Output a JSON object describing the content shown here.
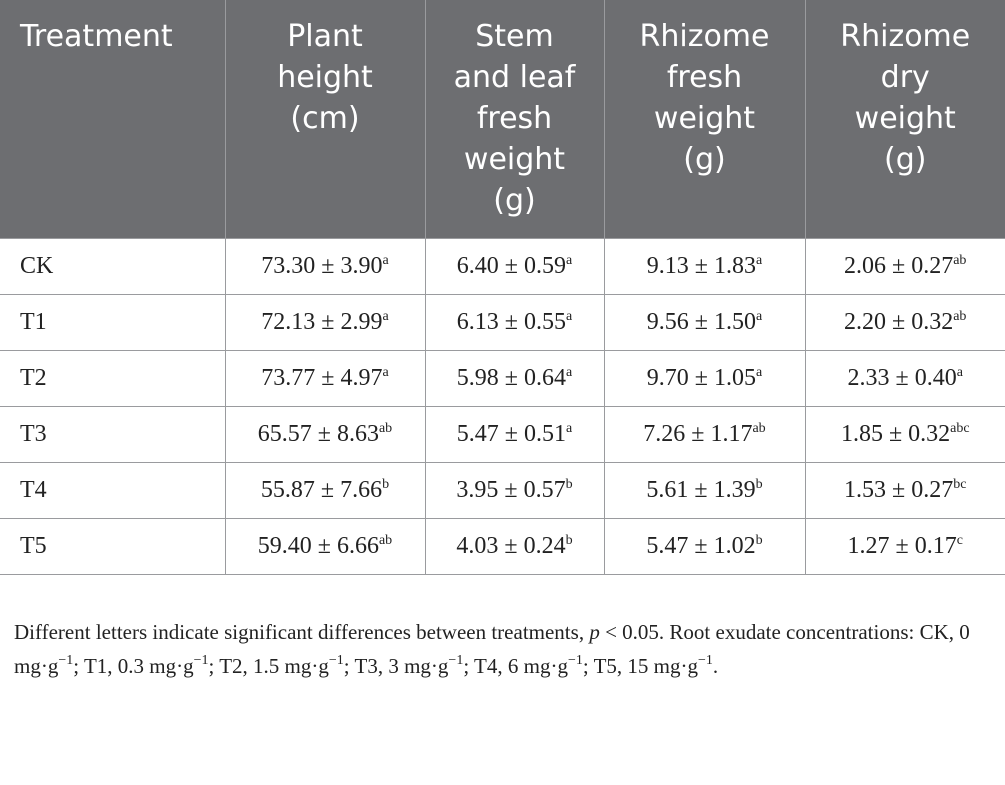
{
  "table": {
    "header": [
      [
        "Treatment"
      ],
      [
        "Plant",
        "height",
        "(cm)"
      ],
      [
        "Stem",
        "and leaf",
        "fresh",
        "weight",
        "(g)"
      ],
      [
        "Rhizome",
        "fresh",
        "weight",
        "(g)"
      ],
      [
        "Rhizome",
        "dry",
        "weight",
        "(g)"
      ]
    ],
    "rows": [
      [
        "CK",
        {
          "value": "73.30 ± 3.90",
          "sup": "a"
        },
        {
          "value": "6.40 ± 0.59",
          "sup": "a"
        },
        {
          "value": "9.13 ± 1.83",
          "sup": "a"
        },
        {
          "value": "2.06 ± 0.27",
          "sup": "ab"
        }
      ],
      [
        "T1",
        {
          "value": "72.13 ± 2.99",
          "sup": "a"
        },
        {
          "value": "6.13 ± 0.55",
          "sup": "a"
        },
        {
          "value": "9.56 ± 1.50",
          "sup": "a"
        },
        {
          "value": "2.20 ± 0.32",
          "sup": "ab"
        }
      ],
      [
        "T2",
        {
          "value": "73.77 ± 4.97",
          "sup": "a"
        },
        {
          "value": "5.98 ± 0.64",
          "sup": "a"
        },
        {
          "value": "9.70 ± 1.05",
          "sup": "a"
        },
        {
          "value": "2.33 ± 0.40",
          "sup": "a"
        }
      ],
      [
        "T3",
        {
          "value": "65.57 ± 8.63",
          "sup": "ab"
        },
        {
          "value": "5.47 ± 0.51",
          "sup": "a"
        },
        {
          "value": "7.26 ± 1.17",
          "sup": "ab"
        },
        {
          "value": "1.85 ± 0.32",
          "sup": "abc"
        }
      ],
      [
        "T4",
        {
          "value": "55.87 ± 7.66",
          "sup": "b"
        },
        {
          "value": "3.95 ± 0.57",
          "sup": "b"
        },
        {
          "value": "5.61 ± 1.39",
          "sup": "b"
        },
        {
          "value": "1.53 ± 0.27",
          "sup": "bc"
        }
      ],
      [
        "T5",
        {
          "value": "59.40 ± 6.66",
          "sup": "ab"
        },
        {
          "value": "4.03 ± 0.24",
          "sup": "b"
        },
        {
          "value": "5.47 ± 1.02",
          "sup": "b"
        },
        {
          "value": "1.27 ± 0.17",
          "sup": "c"
        }
      ]
    ]
  },
  "footnote": {
    "lead": "Different letters indicate significant differences between treatments, ",
    "p": "p",
    "after_p": " < 0.05. Root exudate concentrations: ",
    "items": [
      {
        "text": "CK, 0 mg·g",
        "sup": "−1",
        "tail": "; "
      },
      {
        "text": "T1, 0.3 mg·g",
        "sup": "−1",
        "tail": "; "
      },
      {
        "text": "T2, 1.5 mg·g",
        "sup": "−1",
        "tail": "; "
      },
      {
        "text": "T3, 3 mg·g",
        "sup": "−1",
        "tail": "; "
      },
      {
        "text": "T4, 6 mg·g",
        "sup": "−1",
        "tail": "; "
      },
      {
        "text": "T5, 15 mg·g",
        "sup": "−1",
        "tail": "."
      }
    ]
  }
}
